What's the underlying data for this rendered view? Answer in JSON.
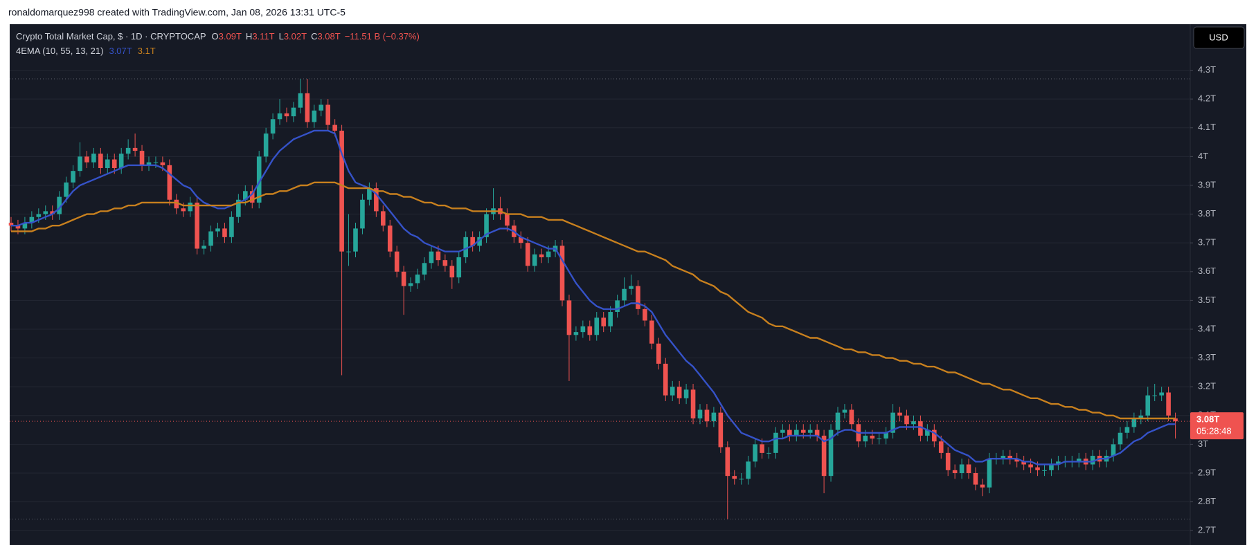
{
  "header": {
    "attribution": "ronaldomarquez998 created with TradingView.com, Jan 08, 2026 13:31 UTC-5"
  },
  "legend": {
    "symbol": "Crypto Total Market Cap, $ · 1D · CRYPTOCAP",
    "ohlc": [
      {
        "key": "O",
        "value": "3.09T"
      },
      {
        "key": "H",
        "value": "3.11T"
      },
      {
        "key": "L",
        "value": "3.02T"
      },
      {
        "key": "C",
        "value": "3.08T"
      }
    ],
    "change": "−11.51 B (−0.37%)",
    "indicator": "4EMA (10, 55, 13, 21)",
    "indicator_values": [
      "3.07T",
      "3.1T"
    ]
  },
  "currency_button": "USD",
  "last_price_label": "3.08T",
  "countdown": "05:28:48",
  "chart_data": {
    "type": "candlestick",
    "up_color": "#26a69a",
    "down_color": "#ef5350",
    "grid": true,
    "ylim": [
      2.65,
      4.46
    ],
    "yticks": [
      {
        "value": 2.7,
        "label": "2.7T"
      },
      {
        "value": 2.8,
        "label": "2.8T"
      },
      {
        "value": 2.9,
        "label": "2.9T"
      },
      {
        "value": 3.0,
        "label": "3T"
      },
      {
        "value": 3.1,
        "label": "3.1T"
      },
      {
        "value": 3.2,
        "label": "3.2T"
      },
      {
        "value": 3.3,
        "label": "3.3T"
      },
      {
        "value": 3.4,
        "label": "3.4T"
      },
      {
        "value": 3.5,
        "label": "3.5T"
      },
      {
        "value": 3.6,
        "label": "3.6T"
      },
      {
        "value": 3.7,
        "label": "3.7T"
      },
      {
        "value": 3.8,
        "label": "3.8T"
      },
      {
        "value": 3.9,
        "label": "3.9T"
      },
      {
        "value": 4.0,
        "label": "4T"
      },
      {
        "value": 4.1,
        "label": "4.1T"
      },
      {
        "value": 4.2,
        "label": "4.2T"
      },
      {
        "value": 4.3,
        "label": "4.3T"
      }
    ],
    "open": [
      3.77,
      3.76,
      3.75,
      3.77,
      3.79,
      3.8,
      3.81,
      3.8,
      3.86,
      3.91,
      3.95,
      4.0,
      3.98,
      4.01,
      3.96,
      3.99,
      3.96,
      4.01,
      4.03,
      4.02,
      3.97,
      3.98,
      3.98,
      3.97,
      3.85,
      3.82,
      3.81,
      3.84,
      3.68,
      3.69,
      3.74,
      3.75,
      3.72,
      3.79,
      3.85,
      3.88,
      3.84,
      4.0,
      4.08,
      4.13,
      4.15,
      4.14,
      4.17,
      4.22,
      4.12,
      4.16,
      4.18,
      4.11,
      4.09,
      3.67,
      3.67,
      3.75,
      3.85,
      3.89,
      3.81,
      3.76,
      3.67,
      3.6,
      3.55,
      3.56,
      3.59,
      3.63,
      3.67,
      3.64,
      3.62,
      3.58,
      3.65,
      3.72,
      3.69,
      3.72,
      3.8,
      3.82,
      3.8,
      3.76,
      3.72,
      3.7,
      3.62,
      3.66,
      3.65,
      3.67,
      3.69,
      3.5,
      3.38,
      3.39,
      3.41,
      3.38,
      3.44,
      3.41,
      3.46,
      3.5,
      3.54,
      3.55,
      3.47,
      3.43,
      3.35,
      3.28,
      3.17,
      3.2,
      3.16,
      3.19,
      3.09,
      3.12,
      3.08,
      3.11,
      2.99,
      2.89,
      2.88,
      2.88,
      2.94,
      3.0,
      2.97,
      2.97,
      3.04,
      3.05,
      3.03,
      3.05,
      3.04,
      3.05,
      3.03,
      2.89,
      3.05,
      3.11,
      3.12,
      3.07,
      3.01,
      3.03,
      3.02,
      3.02,
      3.04,
      3.11,
      3.1,
      3.07,
      3.08,
      3.03,
      3.05,
      3.01,
      2.97,
      2.91,
      2.9,
      2.93,
      2.9,
      2.86,
      2.85,
      2.95,
      2.95,
      2.96,
      2.95,
      2.94,
      2.93,
      2.92,
      2.91,
      2.91,
      2.93,
      2.94,
      2.94,
      2.94,
      2.95,
      2.93,
      2.96,
      2.94,
      2.96,
      3.0,
      3.04,
      3.06,
      3.09,
      3.1,
      3.17,
      3.17,
      3.18,
      3.09
    ],
    "high": [
      3.79,
      3.78,
      3.79,
      3.81,
      3.82,
      3.83,
      3.83,
      3.88,
      3.93,
      3.97,
      4.05,
      4.02,
      4.03,
      4.03,
      4.01,
      4.01,
      4.03,
      4.06,
      4.08,
      4.04,
      4.0,
      4.0,
      4.0,
      3.99,
      3.87,
      3.84,
      3.86,
      3.86,
      3.71,
      3.76,
      3.77,
      3.77,
      3.81,
      3.87,
      3.9,
      3.9,
      4.02,
      4.1,
      4.15,
      4.2,
      4.17,
      4.19,
      4.27,
      4.27,
      4.18,
      4.2,
      4.2,
      4.13,
      4.11,
      3.8,
      3.77,
      3.87,
      3.91,
      3.91,
      3.83,
      3.78,
      3.69,
      3.62,
      3.58,
      3.61,
      3.65,
      3.69,
      3.69,
      3.66,
      3.64,
      3.67,
      3.74,
      3.74,
      3.74,
      3.82,
      3.89,
      3.86,
      3.82,
      3.78,
      3.74,
      3.72,
      3.68,
      3.68,
      3.69,
      3.71,
      3.71,
      3.52,
      3.41,
      3.43,
      3.43,
      3.46,
      3.46,
      3.48,
      3.52,
      3.58,
      3.59,
      3.57,
      3.49,
      3.45,
      3.37,
      3.3,
      3.22,
      3.22,
      3.21,
      3.21,
      3.14,
      3.14,
      3.13,
      3.13,
      3.01,
      2.91,
      2.9,
      2.96,
      3.02,
      3.02,
      2.99,
      3.06,
      3.07,
      3.07,
      3.07,
      3.07,
      3.07,
      3.07,
      3.05,
      3.07,
      3.13,
      3.14,
      3.14,
      3.09,
      3.05,
      3.05,
      3.04,
      3.06,
      3.14,
      3.13,
      3.12,
      3.1,
      3.1,
      3.07,
      3.07,
      3.03,
      2.99,
      2.93,
      2.95,
      2.95,
      2.92,
      2.88,
      2.97,
      2.97,
      2.98,
      2.98,
      2.97,
      2.96,
      2.95,
      2.94,
      2.93,
      2.95,
      2.96,
      2.96,
      2.96,
      2.97,
      2.97,
      2.98,
      2.98,
      2.98,
      3.02,
      3.06,
      3.08,
      3.11,
      3.12,
      3.2,
      3.21,
      3.2,
      3.2,
      3.11
    ],
    "low": [
      3.74,
      3.73,
      3.73,
      3.75,
      3.77,
      3.78,
      3.78,
      3.78,
      3.84,
      3.89,
      3.93,
      3.96,
      3.96,
      3.94,
      3.94,
      3.94,
      3.94,
      3.99,
      4.0,
      3.95,
      3.95,
      3.96,
      3.95,
      3.83,
      3.8,
      3.79,
      3.79,
      3.66,
      3.66,
      3.67,
      3.72,
      3.7,
      3.7,
      3.77,
      3.83,
      3.82,
      3.82,
      3.98,
      4.06,
      4.11,
      4.12,
      4.12,
      4.15,
      4.1,
      4.1,
      4.14,
      4.09,
      4.07,
      3.24,
      3.62,
      3.65,
      3.73,
      3.83,
      3.79,
      3.74,
      3.65,
      3.58,
      3.45,
      3.53,
      3.54,
      3.57,
      3.61,
      3.62,
      3.6,
      3.54,
      3.56,
      3.63,
      3.67,
      3.67,
      3.7,
      3.78,
      3.78,
      3.74,
      3.7,
      3.68,
      3.6,
      3.6,
      3.63,
      3.63,
      3.65,
      3.48,
      3.22,
      3.36,
      3.37,
      3.36,
      3.36,
      3.39,
      3.39,
      3.44,
      3.48,
      3.52,
      3.45,
      3.41,
      3.33,
      3.26,
      3.15,
      3.15,
      3.14,
      3.14,
      3.07,
      3.07,
      3.06,
      3.06,
      2.97,
      2.74,
      2.86,
      2.86,
      2.86,
      2.92,
      2.95,
      2.95,
      2.95,
      3.02,
      3.01,
      3.01,
      3.02,
      3.02,
      3.01,
      2.83,
      2.87,
      3.03,
      3.09,
      3.05,
      2.99,
      2.99,
      3.0,
      3.0,
      3.0,
      3.02,
      3.08,
      3.05,
      3.05,
      3.01,
      3.01,
      2.99,
      2.95,
      2.89,
      2.88,
      2.88,
      2.88,
      2.84,
      2.82,
      2.83,
      2.93,
      2.93,
      2.93,
      2.92,
      2.91,
      2.9,
      2.89,
      2.89,
      2.89,
      2.91,
      2.92,
      2.92,
      2.92,
      2.91,
      2.91,
      2.92,
      2.92,
      2.94,
      2.98,
      3.02,
      3.04,
      3.07,
      3.08,
      3.15,
      3.15,
      3.08,
      3.02
    ],
    "close": [
      3.76,
      3.75,
      3.77,
      3.79,
      3.8,
      3.81,
      3.8,
      3.86,
      3.91,
      3.95,
      4.0,
      3.98,
      4.01,
      3.96,
      3.99,
      3.96,
      4.01,
      4.03,
      4.02,
      3.97,
      3.98,
      3.98,
      3.97,
      3.85,
      3.82,
      3.81,
      3.84,
      3.68,
      3.69,
      3.74,
      3.75,
      3.72,
      3.79,
      3.85,
      3.88,
      3.84,
      4.0,
      4.08,
      4.13,
      4.15,
      4.14,
      4.17,
      4.22,
      4.12,
      4.16,
      4.18,
      4.11,
      4.09,
      3.67,
      3.67,
      3.75,
      3.85,
      3.89,
      3.81,
      3.76,
      3.67,
      3.6,
      3.55,
      3.56,
      3.59,
      3.63,
      3.67,
      3.64,
      3.62,
      3.58,
      3.65,
      3.72,
      3.69,
      3.72,
      3.8,
      3.82,
      3.8,
      3.76,
      3.72,
      3.7,
      3.62,
      3.66,
      3.65,
      3.67,
      3.69,
      3.5,
      3.38,
      3.39,
      3.41,
      3.38,
      3.44,
      3.41,
      3.46,
      3.5,
      3.54,
      3.55,
      3.47,
      3.43,
      3.35,
      3.28,
      3.17,
      3.2,
      3.16,
      3.19,
      3.09,
      3.12,
      3.08,
      3.11,
      2.99,
      2.89,
      2.88,
      2.88,
      2.94,
      3.0,
      2.97,
      2.97,
      3.04,
      3.05,
      3.03,
      3.05,
      3.04,
      3.05,
      3.03,
      2.89,
      3.05,
      3.11,
      3.12,
      3.07,
      3.01,
      3.03,
      3.02,
      3.02,
      3.04,
      3.11,
      3.1,
      3.07,
      3.08,
      3.03,
      3.05,
      3.01,
      2.97,
      2.91,
      2.9,
      2.93,
      2.9,
      2.86,
      2.85,
      2.95,
      2.95,
      2.96,
      2.95,
      2.94,
      2.93,
      2.92,
      2.91,
      2.91,
      2.93,
      2.94,
      2.94,
      2.94,
      2.95,
      2.93,
      2.96,
      2.94,
      2.96,
      3.0,
      3.04,
      3.06,
      3.09,
      3.1,
      3.17,
      3.17,
      3.18,
      3.1,
      3.08
    ],
    "lines": [
      {
        "color": "#3552c8",
        "values": [
          3.76,
          3.76,
          3.77,
          3.77,
          3.78,
          3.79,
          3.8,
          3.82,
          3.85,
          3.88,
          3.9,
          3.91,
          3.92,
          3.93,
          3.94,
          3.95,
          3.96,
          3.97,
          3.97,
          3.97,
          3.97,
          3.97,
          3.96,
          3.94,
          3.92,
          3.9,
          3.89,
          3.86,
          3.84,
          3.83,
          3.82,
          3.82,
          3.83,
          3.84,
          3.85,
          3.87,
          3.91,
          3.95,
          3.99,
          4.02,
          4.04,
          4.06,
          4.07,
          4.08,
          4.09,
          4.09,
          4.09,
          4.08,
          4.01,
          3.95,
          3.91,
          3.9,
          3.89,
          3.87,
          3.84,
          3.81,
          3.78,
          3.75,
          3.73,
          3.72,
          3.7,
          3.69,
          3.68,
          3.67,
          3.67,
          3.67,
          3.68,
          3.69,
          3.71,
          3.73,
          3.74,
          3.75,
          3.75,
          3.74,
          3.72,
          3.71,
          3.7,
          3.69,
          3.68,
          3.68,
          3.64,
          3.6,
          3.56,
          3.53,
          3.5,
          3.48,
          3.47,
          3.47,
          3.47,
          3.48,
          3.49,
          3.49,
          3.48,
          3.46,
          3.42,
          3.38,
          3.35,
          3.32,
          3.29,
          3.27,
          3.24,
          3.21,
          3.18,
          3.14,
          3.1,
          3.07,
          3.04,
          3.03,
          3.02,
          3.01,
          3.01,
          3.02,
          3.02,
          3.03,
          3.03,
          3.03,
          3.03,
          3.03,
          3.01,
          3.02,
          3.04,
          3.05,
          3.05,
          3.04,
          3.04,
          3.04,
          3.04,
          3.04,
          3.05,
          3.06,
          3.06,
          3.06,
          3.06,
          3.05,
          3.04,
          3.02,
          3.0,
          2.98,
          2.97,
          2.96,
          2.94,
          2.94,
          2.95,
          2.95,
          2.95,
          2.95,
          2.95,
          2.94,
          2.94,
          2.93,
          2.93,
          2.93,
          2.93,
          2.94,
          2.94,
          2.94,
          2.94,
          2.94,
          2.95,
          2.95,
          2.96,
          2.97,
          2.99,
          3.01,
          3.02,
          3.04,
          3.05,
          3.06,
          3.07,
          3.07
        ]
      },
      {
        "color": "#c8801e",
        "values": [
          3.74,
          3.74,
          3.74,
          3.74,
          3.75,
          3.75,
          3.76,
          3.76,
          3.77,
          3.78,
          3.79,
          3.8,
          3.8,
          3.81,
          3.81,
          3.82,
          3.82,
          3.83,
          3.83,
          3.84,
          3.84,
          3.84,
          3.84,
          3.84,
          3.84,
          3.83,
          3.83,
          3.83,
          3.83,
          3.83,
          3.83,
          3.83,
          3.83,
          3.84,
          3.84,
          3.85,
          3.86,
          3.87,
          3.87,
          3.88,
          3.88,
          3.89,
          3.9,
          3.9,
          3.91,
          3.91,
          3.91,
          3.91,
          3.9,
          3.89,
          3.89,
          3.89,
          3.89,
          3.88,
          3.88,
          3.87,
          3.87,
          3.86,
          3.86,
          3.85,
          3.84,
          3.84,
          3.83,
          3.83,
          3.82,
          3.82,
          3.82,
          3.81,
          3.81,
          3.81,
          3.81,
          3.81,
          3.8,
          3.8,
          3.8,
          3.79,
          3.79,
          3.79,
          3.78,
          3.78,
          3.78,
          3.77,
          3.76,
          3.75,
          3.74,
          3.73,
          3.72,
          3.71,
          3.7,
          3.69,
          3.68,
          3.67,
          3.67,
          3.66,
          3.65,
          3.64,
          3.62,
          3.61,
          3.6,
          3.59,
          3.57,
          3.56,
          3.55,
          3.53,
          3.52,
          3.5,
          3.48,
          3.46,
          3.45,
          3.44,
          3.42,
          3.41,
          3.41,
          3.4,
          3.39,
          3.38,
          3.37,
          3.37,
          3.36,
          3.35,
          3.34,
          3.33,
          3.33,
          3.32,
          3.32,
          3.31,
          3.31,
          3.3,
          3.3,
          3.29,
          3.29,
          3.28,
          3.28,
          3.27,
          3.27,
          3.26,
          3.25,
          3.25,
          3.24,
          3.23,
          3.22,
          3.21,
          3.21,
          3.2,
          3.19,
          3.19,
          3.18,
          3.17,
          3.16,
          3.16,
          3.15,
          3.14,
          3.14,
          3.13,
          3.13,
          3.12,
          3.12,
          3.11,
          3.11,
          3.1,
          3.1,
          3.09,
          3.09,
          3.09,
          3.09,
          3.09,
          3.09,
          3.09,
          3.09,
          3.09
        ]
      }
    ]
  }
}
